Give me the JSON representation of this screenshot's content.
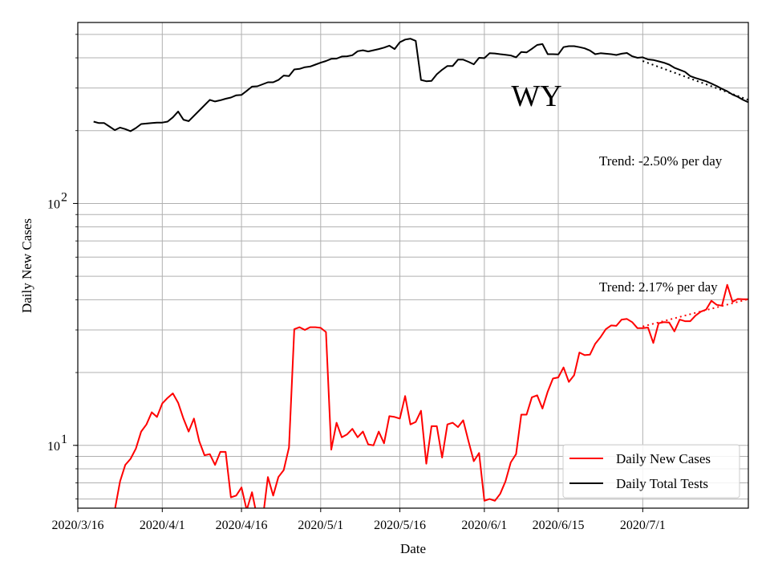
{
  "chart_data": {
    "type": "line",
    "title": "",
    "annotation_title": "WY",
    "xlabel": "Date",
    "ylabel": "Daily New Cases",
    "y_scale": "log",
    "ylim": [
      5.5,
      560
    ],
    "xlim": [
      "2020-03-16",
      "2020-07-21"
    ],
    "grid": true,
    "legend_position": "lower-right",
    "x_ticks": [
      "2020/3/16",
      "2020/4/1",
      "2020/4/16",
      "2020/5/1",
      "2020/5/16",
      "2020/6/1",
      "2020/6/15",
      "2020/7/1"
    ],
    "x_tick_dates": [
      "2020-03-16",
      "2020-04-01",
      "2020-04-16",
      "2020-05-01",
      "2020-05-16",
      "2020-06-01",
      "2020-06-15",
      "2020-07-01"
    ],
    "y_ticks": [
      {
        "value": 10,
        "base": "10",
        "exp": "1"
      },
      {
        "value": 100,
        "base": "10",
        "exp": "2"
      }
    ],
    "annotations": [
      {
        "text": "Trend: -2.50% per day",
        "series": "Daily Total Tests"
      },
      {
        "text": "Trend: 2.17% per day",
        "series": "Daily New Cases"
      }
    ],
    "series": [
      {
        "name": "Daily New Cases",
        "color": "#ff0000",
        "x": [
          "2020-03-23",
          "2020-03-24",
          "2020-03-25",
          "2020-03-26",
          "2020-03-27",
          "2020-03-28",
          "2020-03-29",
          "2020-03-30",
          "2020-03-31",
          "2020-04-01",
          "2020-04-02",
          "2020-04-03",
          "2020-04-04",
          "2020-04-05",
          "2020-04-06",
          "2020-04-07",
          "2020-04-08",
          "2020-04-09",
          "2020-04-10",
          "2020-04-11",
          "2020-04-12",
          "2020-04-13",
          "2020-04-14",
          "2020-04-15",
          "2020-04-16",
          "2020-04-17",
          "2020-04-18",
          "2020-04-19",
          "2020-04-20",
          "2020-04-21",
          "2020-04-22",
          "2020-04-23",
          "2020-04-24",
          "2020-04-25",
          "2020-04-26",
          "2020-04-27",
          "2020-04-28",
          "2020-04-29",
          "2020-04-30",
          "2020-05-01",
          "2020-05-02",
          "2020-05-03",
          "2020-05-04",
          "2020-05-05",
          "2020-05-06",
          "2020-05-07",
          "2020-05-08",
          "2020-05-09",
          "2020-05-10",
          "2020-05-11",
          "2020-05-12",
          "2020-05-13",
          "2020-05-14",
          "2020-05-15",
          "2020-05-16",
          "2020-05-17",
          "2020-05-18",
          "2020-05-19",
          "2020-05-20",
          "2020-05-21",
          "2020-05-22",
          "2020-05-23",
          "2020-05-24",
          "2020-05-25",
          "2020-05-26",
          "2020-05-27",
          "2020-05-28",
          "2020-05-29",
          "2020-05-30",
          "2020-05-31",
          "2020-06-01",
          "2020-06-02",
          "2020-06-03",
          "2020-06-04",
          "2020-06-05",
          "2020-06-06",
          "2020-06-07",
          "2020-06-08",
          "2020-06-09",
          "2020-06-10",
          "2020-06-11",
          "2020-06-12",
          "2020-06-13",
          "2020-06-14",
          "2020-06-15",
          "2020-06-16",
          "2020-06-17",
          "2020-06-18",
          "2020-06-19",
          "2020-06-20",
          "2020-06-21",
          "2020-06-22",
          "2020-06-23",
          "2020-06-24",
          "2020-06-25",
          "2020-06-26",
          "2020-06-27",
          "2020-06-28",
          "2020-06-29",
          "2020-06-30",
          "2020-07-01",
          "2020-07-02",
          "2020-07-03",
          "2020-07-04",
          "2020-07-05",
          "2020-07-06",
          "2020-07-07",
          "2020-07-08",
          "2020-07-09",
          "2020-07-10",
          "2020-07-11",
          "2020-07-12",
          "2020-07-13",
          "2020-07-14",
          "2020-07-15",
          "2020-07-16",
          "2020-07-17",
          "2020-07-18",
          "2020-07-19",
          "2020-07-20",
          "2020-07-21"
        ],
        "y": [
          5.4,
          7.1,
          8.3,
          8.8,
          9.7,
          11.4,
          12.2,
          13.7,
          13.1,
          14.9,
          15.7,
          16.4,
          15.0,
          12.9,
          11.4,
          12.9,
          10.4,
          9.1,
          9.2,
          8.3,
          9.4,
          9.4,
          6.1,
          6.2,
          6.7,
          5.4,
          6.4,
          5.0,
          4.9,
          7.4,
          6.2,
          7.4,
          7.9,
          9.8,
          30.2,
          30.8,
          30.0,
          30.8,
          30.8,
          30.6,
          29.4,
          9.6,
          12.4,
          10.8,
          11.1,
          11.7,
          10.8,
          11.4,
          10.1,
          10.0,
          11.4,
          10.2,
          13.2,
          13.1,
          12.9,
          16.0,
          12.2,
          12.5,
          13.9,
          8.4,
          12.0,
          12.0,
          8.9,
          12.2,
          12.4,
          11.9,
          12.7,
          10.4,
          8.6,
          9.3,
          5.9,
          6.0,
          5.9,
          6.3,
          7.1,
          8.5,
          9.2,
          13.4,
          13.4,
          15.8,
          16.1,
          14.2,
          16.7,
          18.9,
          19.1,
          21.0,
          18.3,
          19.5,
          24.2,
          23.6,
          23.7,
          26.3,
          28.0,
          30.2,
          31.3,
          31.2,
          33.1,
          33.3,
          32.3,
          30.5,
          30.5,
          30.7,
          26.5,
          32.0,
          32.3,
          32.2,
          29.6,
          33.1,
          32.6,
          32.6,
          34.4,
          35.7,
          36.4,
          39.6,
          38.1,
          37.8,
          46.1,
          39.2,
          40.3,
          40.2,
          40.2
        ]
      },
      {
        "name": "Daily Total Tests",
        "color": "#000000",
        "x": [
          "2020-03-19",
          "2020-03-20",
          "2020-03-21",
          "2020-03-22",
          "2020-03-23",
          "2020-03-24",
          "2020-03-25",
          "2020-03-26",
          "2020-03-27",
          "2020-03-28",
          "2020-03-29",
          "2020-03-30",
          "2020-03-31",
          "2020-04-01",
          "2020-04-02",
          "2020-04-03",
          "2020-04-04",
          "2020-04-05",
          "2020-04-06",
          "2020-04-10",
          "2020-04-11",
          "2020-04-12",
          "2020-04-13",
          "2020-04-14",
          "2020-04-15",
          "2020-04-16",
          "2020-04-17",
          "2020-04-18",
          "2020-04-19",
          "2020-04-20",
          "2020-04-21",
          "2020-04-22",
          "2020-04-23",
          "2020-04-24",
          "2020-04-25",
          "2020-04-26",
          "2020-04-27",
          "2020-04-28",
          "2020-04-29",
          "2020-04-30",
          "2020-05-01",
          "2020-05-02",
          "2020-05-03",
          "2020-05-04",
          "2020-05-05",
          "2020-05-06",
          "2020-05-07",
          "2020-05-08",
          "2020-05-09",
          "2020-05-10",
          "2020-05-11",
          "2020-05-12",
          "2020-05-13",
          "2020-05-14",
          "2020-05-15",
          "2020-05-16",
          "2020-05-17",
          "2020-05-18",
          "2020-05-19",
          "2020-05-20",
          "2020-05-21",
          "2020-05-22",
          "2020-05-23",
          "2020-05-24",
          "2020-05-25",
          "2020-05-26",
          "2020-05-27",
          "2020-05-28",
          "2020-05-29",
          "2020-05-30",
          "2020-05-31",
          "2020-06-01",
          "2020-06-02",
          "2020-06-03",
          "2020-06-04",
          "2020-06-05",
          "2020-06-06",
          "2020-06-07",
          "2020-06-08",
          "2020-06-09",
          "2020-06-10",
          "2020-06-11",
          "2020-06-12",
          "2020-06-13",
          "2020-06-14",
          "2020-06-15",
          "2020-06-16",
          "2020-06-17",
          "2020-06-18",
          "2020-06-19",
          "2020-06-20",
          "2020-06-21",
          "2020-06-22",
          "2020-06-23",
          "2020-06-24",
          "2020-06-25",
          "2020-06-26",
          "2020-06-27",
          "2020-06-28",
          "2020-06-29",
          "2020-06-30",
          "2020-07-01",
          "2020-07-02",
          "2020-07-03",
          "2020-07-04",
          "2020-07-05",
          "2020-07-06",
          "2020-07-07",
          "2020-07-08",
          "2020-07-09",
          "2020-07-10",
          "2020-07-11",
          "2020-07-12",
          "2020-07-13",
          "2020-07-14",
          "2020-07-15",
          "2020-07-16",
          "2020-07-17",
          "2020-07-18",
          "2020-07-19",
          "2020-07-20",
          "2020-07-21"
        ],
        "y": [
          218,
          215,
          215,
          208,
          201,
          206,
          203,
          199,
          205,
          213,
          214,
          215,
          216,
          216,
          218,
          227,
          240,
          222,
          219,
          268,
          264,
          267,
          271,
          274,
          280,
          281,
          292,
          304,
          305,
          311,
          317,
          317,
          324,
          338,
          336,
          358,
          360,
          366,
          368,
          375,
          382,
          388,
          396,
          397,
          405,
          406,
          410,
          426,
          430,
          425,
          430,
          435,
          441,
          449,
          435,
          464,
          476,
          480,
          470,
          324,
          320,
          321,
          342,
          357,
          370,
          370,
          393,
          393,
          385,
          376,
          400,
          399,
          418,
          417,
          414,
          412,
          409,
          402,
          423,
          421,
          436,
          452,
          456,
          414,
          414,
          413,
          443,
          447,
          447,
          443,
          438,
          429,
          414,
          418,
          416,
          414,
          411,
          416,
          419,
          406,
          400,
          402,
          394,
          392,
          387,
          382,
          375,
          364,
          357,
          350,
          336,
          330,
          325,
          320,
          313,
          306,
          298,
          291,
          282,
          276,
          268,
          262
        ]
      }
    ],
    "trend_lines": [
      {
        "series": "Daily New Cases",
        "x": [
          "2020-07-01",
          "2020-07-21"
        ],
        "y": [
          31.0,
          40.2
        ]
      },
      {
        "series": "Daily Total Tests",
        "x": [
          "2020-07-01",
          "2020-07-21"
        ],
        "y": [
          388,
          268
        ]
      }
    ]
  }
}
